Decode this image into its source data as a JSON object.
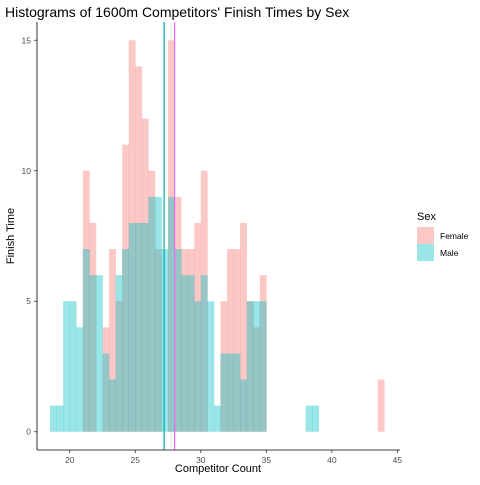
{
  "chart_data": {
    "type": "bar",
    "title": "Histograms of 1600m Competitors' Finish Times by Sex",
    "xlabel": "Competitor Count",
    "ylabel": "Finish Time",
    "xlim": [
      17.5,
      45.2
    ],
    "ylim": [
      -0.7,
      15.7
    ],
    "x_ticks": [
      20,
      25,
      30,
      35,
      40,
      45
    ],
    "y_ticks": [
      0,
      5,
      10,
      15
    ],
    "bin_width": 0.5,
    "grid": false,
    "legend": {
      "title": "Sex",
      "position": "right"
    },
    "series": [
      {
        "name": "Female",
        "color": "#F8766D",
        "bins": [
          [
            21.25,
            10
          ],
          [
            21.75,
            8
          ],
          [
            22.75,
            4
          ],
          [
            23.25,
            7
          ],
          [
            23.75,
            5
          ],
          [
            24.25,
            11
          ],
          [
            24.75,
            15
          ],
          [
            25.25,
            14
          ],
          [
            25.75,
            12
          ],
          [
            26.25,
            10
          ],
          [
            26.75,
            7
          ],
          [
            27.75,
            15
          ],
          [
            28.25,
            9
          ],
          [
            28.75,
            7
          ],
          [
            29.25,
            7
          ],
          [
            29.75,
            8
          ],
          [
            30.25,
            10
          ],
          [
            31.75,
            5
          ],
          [
            32.25,
            7
          ],
          [
            32.75,
            7
          ],
          [
            33.25,
            8
          ],
          [
            33.75,
            5
          ],
          [
            34.25,
            4
          ],
          [
            34.75,
            6
          ],
          [
            43.75,
            2
          ]
        ]
      },
      {
        "name": "Male",
        "color": "#00BFC4",
        "bins": [
          [
            18.75,
            1
          ],
          [
            19.25,
            1
          ],
          [
            19.75,
            5
          ],
          [
            20.25,
            5
          ],
          [
            20.75,
            4
          ],
          [
            21.25,
            7
          ],
          [
            21.75,
            6
          ],
          [
            22.25,
            6
          ],
          [
            22.75,
            3
          ],
          [
            23.25,
            2
          ],
          [
            23.75,
            6
          ],
          [
            24.25,
            7
          ],
          [
            24.75,
            8
          ],
          [
            25.25,
            8
          ],
          [
            25.75,
            8
          ],
          [
            26.25,
            9
          ],
          [
            26.75,
            9
          ],
          [
            27.25,
            7
          ],
          [
            27.75,
            9
          ],
          [
            28.25,
            7
          ],
          [
            28.75,
            6
          ],
          [
            29.25,
            6
          ],
          [
            29.75,
            5
          ],
          [
            30.25,
            6
          ],
          [
            30.75,
            5
          ],
          [
            31.25,
            1
          ],
          [
            31.75,
            3
          ],
          [
            32.25,
            3
          ],
          [
            32.75,
            3
          ],
          [
            33.25,
            2
          ],
          [
            33.75,
            5
          ],
          [
            34.25,
            5
          ],
          [
            34.75,
            5
          ],
          [
            38.25,
            1
          ],
          [
            38.75,
            1
          ]
        ]
      }
    ],
    "reference_lines": [
      {
        "value": 27.2,
        "color": "#00A9AE"
      },
      {
        "value": 28.0,
        "color": "#E76BF3"
      }
    ]
  }
}
